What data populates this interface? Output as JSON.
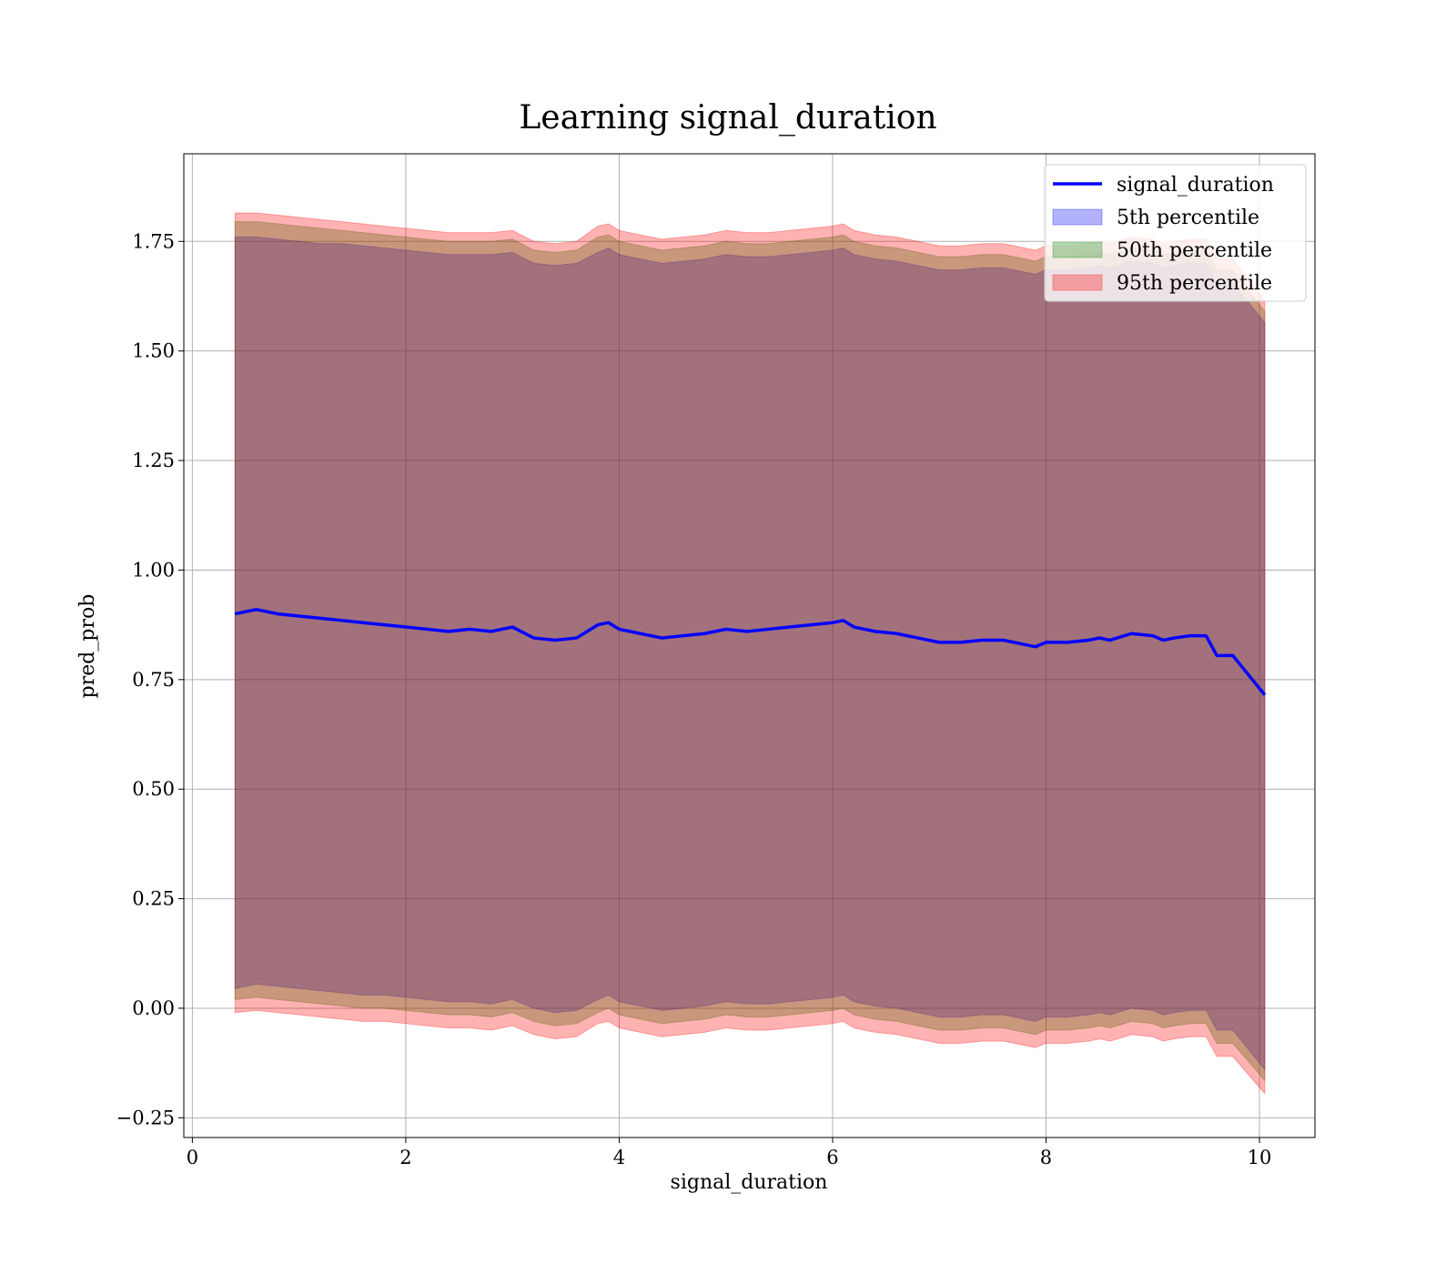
{
  "chart_data": {
    "type": "area",
    "title": "Learning signal_duration",
    "xlabel": "signal_duration",
    "ylabel": "pred_prob",
    "xlim": [
      -0.08,
      10.52
    ],
    "ylim": [
      -0.295,
      1.95
    ],
    "xticks": [
      0,
      2,
      4,
      6,
      8,
      10
    ],
    "xtick_labels": [
      "0",
      "2",
      "4",
      "6",
      "8",
      "10"
    ],
    "yticks": [
      -0.25,
      0.0,
      0.25,
      0.5,
      0.75,
      1.0,
      1.25,
      1.5,
      1.75
    ],
    "ytick_labels": [
      "−0.25",
      "0.00",
      "0.25",
      "0.50",
      "0.75",
      "1.00",
      "1.25",
      "1.50",
      "1.75"
    ],
    "grid": true,
    "legend_position": "top-right",
    "x": [
      0.4,
      0.6,
      0.8,
      1.0,
      1.2,
      1.4,
      1.6,
      1.8,
      2.0,
      2.2,
      2.4,
      2.6,
      2.8,
      3.0,
      3.2,
      3.4,
      3.6,
      3.8,
      3.9,
      4.0,
      4.2,
      4.4,
      4.6,
      4.8,
      5.0,
      5.2,
      5.4,
      5.6,
      5.8,
      6.0,
      6.1,
      6.2,
      6.4,
      6.6,
      6.8,
      7.0,
      7.2,
      7.4,
      7.6,
      7.8,
      7.9,
      8.0,
      8.2,
      8.4,
      8.5,
      8.6,
      8.8,
      9.0,
      9.1,
      9.2,
      9.35,
      9.5,
      9.6,
      9.75,
      10.05
    ],
    "series": [
      {
        "name": "signal_duration",
        "kind": "line",
        "color": "#0000ff",
        "values": [
          0.9,
          0.91,
          0.9,
          0.895,
          0.89,
          0.885,
          0.88,
          0.875,
          0.87,
          0.865,
          0.86,
          0.865,
          0.86,
          0.87,
          0.845,
          0.84,
          0.845,
          0.875,
          0.88,
          0.865,
          0.855,
          0.845,
          0.85,
          0.855,
          0.865,
          0.86,
          0.865,
          0.87,
          0.875,
          0.88,
          0.885,
          0.87,
          0.86,
          0.855,
          0.845,
          0.835,
          0.835,
          0.84,
          0.84,
          0.83,
          0.825,
          0.835,
          0.835,
          0.84,
          0.845,
          0.84,
          0.855,
          0.85,
          0.84,
          0.845,
          0.85,
          0.85,
          0.805,
          0.805,
          0.715
        ]
      },
      {
        "name": "5th percentile",
        "kind": "band",
        "color": "#0000ff",
        "opacity": 0.3,
        "upper": [
          1.76,
          1.76,
          1.755,
          1.75,
          1.745,
          1.745,
          1.74,
          1.735,
          1.73,
          1.725,
          1.72,
          1.72,
          1.72,
          1.725,
          1.7,
          1.695,
          1.7,
          1.725,
          1.735,
          1.72,
          1.71,
          1.7,
          1.705,
          1.71,
          1.72,
          1.715,
          1.715,
          1.72,
          1.725,
          1.73,
          1.735,
          1.72,
          1.71,
          1.705,
          1.695,
          1.685,
          1.685,
          1.69,
          1.69,
          1.68,
          1.675,
          1.685,
          1.685,
          1.69,
          1.695,
          1.69,
          1.705,
          1.7,
          1.69,
          1.695,
          1.7,
          1.7,
          1.655,
          1.655,
          1.565
        ],
        "lower": [
          0.045,
          0.055,
          0.05,
          0.045,
          0.04,
          0.035,
          0.03,
          0.03,
          0.025,
          0.02,
          0.015,
          0.015,
          0.01,
          0.02,
          0.0,
          -0.01,
          -0.005,
          0.02,
          0.03,
          0.015,
          0.005,
          -0.005,
          0.0,
          0.005,
          0.015,
          0.01,
          0.01,
          0.015,
          0.02,
          0.025,
          0.03,
          0.015,
          0.005,
          0.0,
          -0.01,
          -0.02,
          -0.02,
          -0.015,
          -0.015,
          -0.025,
          -0.03,
          -0.02,
          -0.02,
          -0.015,
          -0.01,
          -0.015,
          0.0,
          -0.005,
          -0.015,
          -0.01,
          -0.005,
          -0.005,
          -0.05,
          -0.05,
          -0.14
        ]
      },
      {
        "name": "50th percentile",
        "kind": "band",
        "color": "#008000",
        "opacity": 0.3,
        "upper": [
          1.795,
          1.795,
          1.79,
          1.785,
          1.78,
          1.775,
          1.77,
          1.765,
          1.76,
          1.755,
          1.75,
          1.75,
          1.75,
          1.755,
          1.73,
          1.725,
          1.73,
          1.76,
          1.765,
          1.75,
          1.74,
          1.73,
          1.735,
          1.74,
          1.75,
          1.745,
          1.745,
          1.75,
          1.755,
          1.76,
          1.765,
          1.75,
          1.74,
          1.735,
          1.725,
          1.715,
          1.715,
          1.72,
          1.72,
          1.71,
          1.705,
          1.715,
          1.715,
          1.72,
          1.725,
          1.72,
          1.735,
          1.73,
          1.72,
          1.725,
          1.73,
          1.73,
          1.685,
          1.685,
          1.59
        ],
        "lower": [
          0.02,
          0.025,
          0.02,
          0.015,
          0.01,
          0.005,
          0.0,
          0.0,
          -0.005,
          -0.01,
          -0.015,
          -0.015,
          -0.02,
          -0.01,
          -0.03,
          -0.04,
          -0.035,
          -0.01,
          0.0,
          -0.015,
          -0.025,
          -0.035,
          -0.03,
          -0.025,
          -0.015,
          -0.02,
          -0.02,
          -0.015,
          -0.01,
          -0.005,
          0.0,
          -0.015,
          -0.025,
          -0.03,
          -0.04,
          -0.05,
          -0.05,
          -0.045,
          -0.045,
          -0.055,
          -0.06,
          -0.05,
          -0.05,
          -0.045,
          -0.04,
          -0.045,
          -0.03,
          -0.035,
          -0.045,
          -0.04,
          -0.035,
          -0.035,
          -0.08,
          -0.08,
          -0.165
        ]
      },
      {
        "name": "95th percentile",
        "kind": "band",
        "color": "#ff0000",
        "opacity": 0.3,
        "upper": [
          1.815,
          1.815,
          1.81,
          1.805,
          1.8,
          1.795,
          1.79,
          1.785,
          1.78,
          1.775,
          1.77,
          1.77,
          1.77,
          1.775,
          1.75,
          1.745,
          1.75,
          1.785,
          1.79,
          1.775,
          1.765,
          1.755,
          1.76,
          1.765,
          1.775,
          1.77,
          1.77,
          1.775,
          1.78,
          1.785,
          1.79,
          1.775,
          1.765,
          1.76,
          1.75,
          1.74,
          1.74,
          1.745,
          1.745,
          1.735,
          1.73,
          1.74,
          1.74,
          1.745,
          1.75,
          1.745,
          1.76,
          1.755,
          1.745,
          1.75,
          1.755,
          1.755,
          1.71,
          1.71,
          1.615
        ],
        "lower": [
          -0.01,
          -0.005,
          -0.01,
          -0.015,
          -0.02,
          -0.025,
          -0.03,
          -0.03,
          -0.035,
          -0.04,
          -0.045,
          -0.045,
          -0.05,
          -0.04,
          -0.06,
          -0.07,
          -0.065,
          -0.035,
          -0.03,
          -0.045,
          -0.055,
          -0.065,
          -0.06,
          -0.055,
          -0.045,
          -0.05,
          -0.05,
          -0.045,
          -0.04,
          -0.035,
          -0.03,
          -0.045,
          -0.055,
          -0.06,
          -0.07,
          -0.08,
          -0.08,
          -0.075,
          -0.075,
          -0.085,
          -0.09,
          -0.08,
          -0.08,
          -0.075,
          -0.07,
          -0.075,
          -0.06,
          -0.065,
          -0.075,
          -0.07,
          -0.065,
          -0.065,
          -0.11,
          -0.11,
          -0.195
        ]
      }
    ]
  }
}
